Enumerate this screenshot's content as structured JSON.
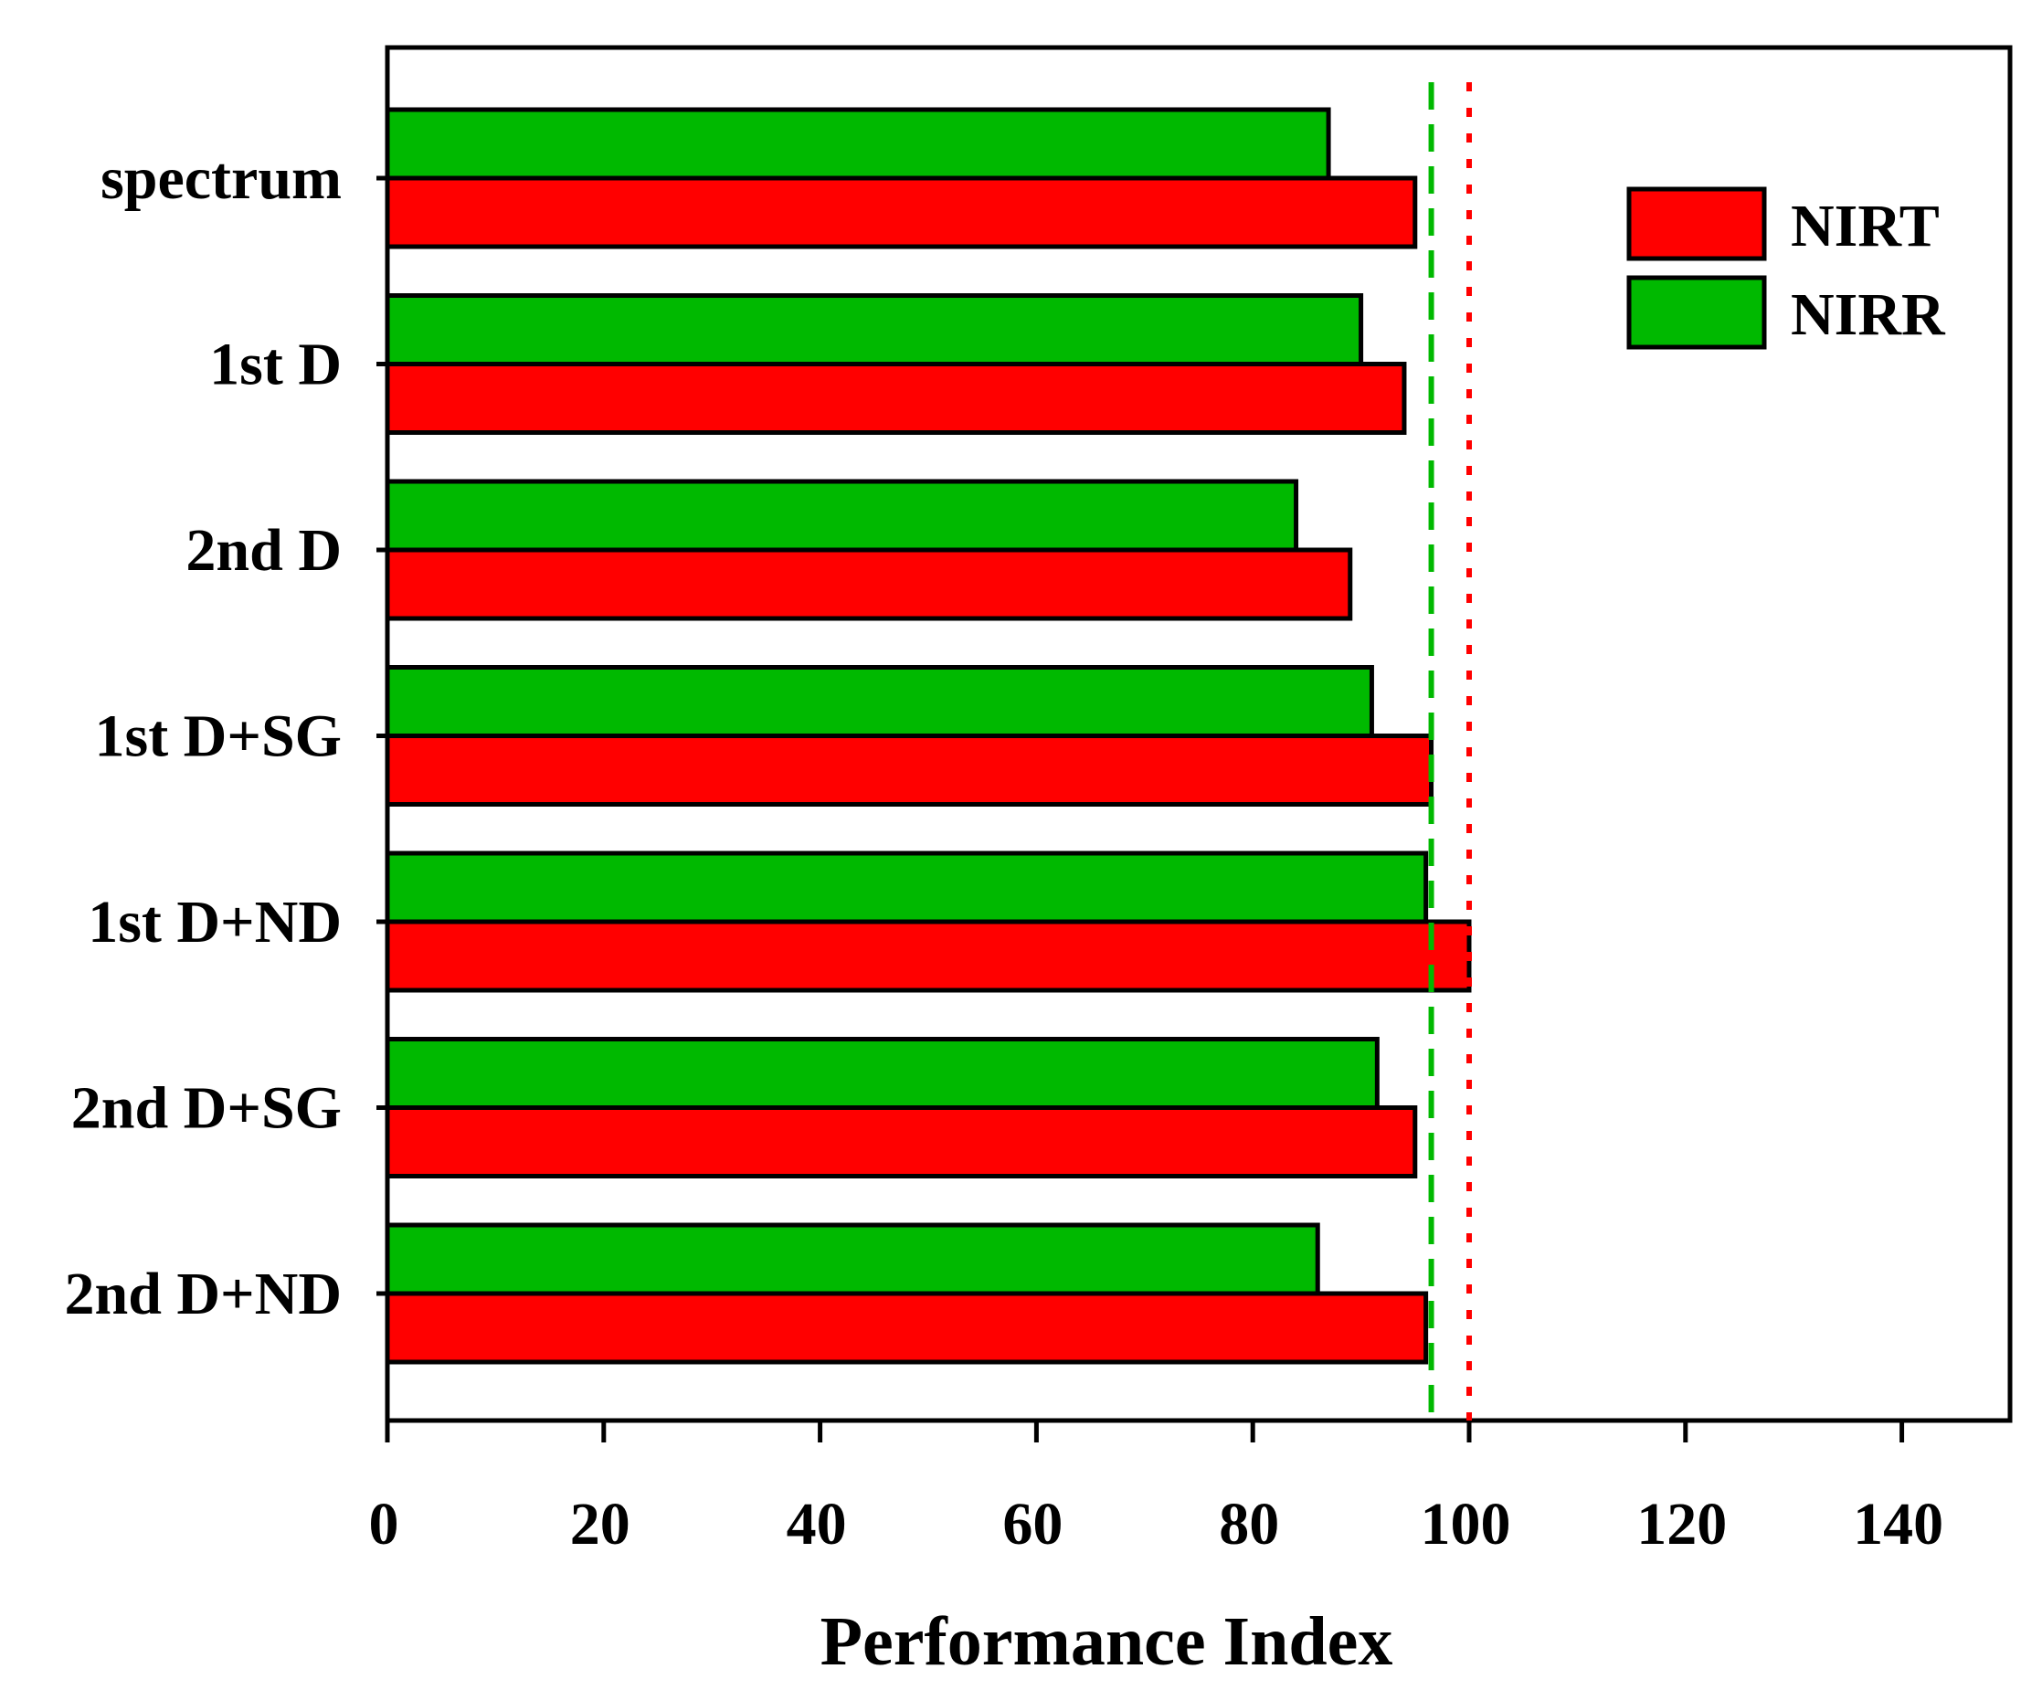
{
  "chart_data": {
    "type": "bar",
    "orientation": "horizontal",
    "categories": [
      "spectrum",
      "1st D",
      "2nd D",
      "1st D+SG",
      "1st D+ND",
      "2nd D+SG",
      "2nd D+ND"
    ],
    "series": [
      {
        "name": "NIRT",
        "color": "#ff0000",
        "values": [
          95,
          94,
          89,
          96.5,
          100,
          95,
          96
        ]
      },
      {
        "name": "NIRR",
        "color": "#00b900",
        "values": [
          87,
          90,
          84,
          91,
          96,
          91.5,
          86
        ]
      }
    ],
    "reference_lines": [
      {
        "series": "NIRR",
        "value": 96.5,
        "style": "dashed",
        "color": "#00b900"
      },
      {
        "series": "NIRT",
        "value": 100,
        "style": "dotted",
        "color": "#ff0000"
      }
    ],
    "xlabel": "Performance Index",
    "ylabel": "",
    "xlim": [
      0,
      150
    ],
    "xticks": [
      0,
      20,
      40,
      60,
      80,
      100,
      120,
      140
    ],
    "legend": {
      "position": "top-right",
      "entries": [
        "NIRT",
        "NIRR"
      ]
    },
    "grid": false
  }
}
